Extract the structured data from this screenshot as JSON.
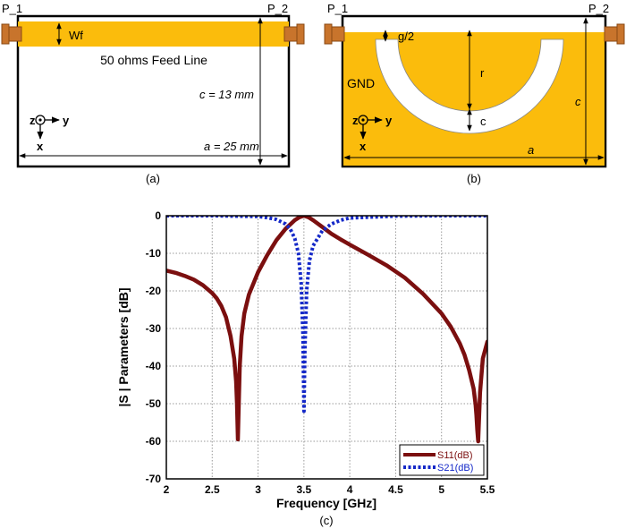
{
  "panel_a": {
    "port1": "P_1",
    "port2": "P_2",
    "feed_width_label": "Wf",
    "feed_line_label": "50 ohms Feed Line",
    "height_label": "c = 13 mm",
    "width_label": "a = 25 mm",
    "axis_z": "z",
    "axis_y": "y",
    "axis_x": "x",
    "caption": "(a)"
  },
  "panel_b": {
    "port1": "P_1",
    "port2": "P_2",
    "gap_label": "g/2",
    "radius_label": "r",
    "ring_width_label": "c",
    "ground_label": "GND",
    "height_label": "c",
    "width_label": "a",
    "axis_z": "z",
    "axis_y": "y",
    "axis_x": "x",
    "caption": "(b)"
  },
  "colors": {
    "metal": "#fbbc0c",
    "connector": "#c8742c",
    "connector_dark": "#8a4a14",
    "s11": "#7b0f0f",
    "s21": "#1428c8"
  },
  "chart_data": {
    "type": "line",
    "xlabel": "Frequency [GHz]",
    "ylabel": "|S | Parameters [dB]",
    "xlim": [
      2,
      5.5
    ],
    "ylim": [
      -70,
      0
    ],
    "xticks": [
      "2",
      "2.5",
      "3",
      "3.5",
      "4",
      "4.5",
      "5",
      "5.5"
    ],
    "yticks": [
      "0",
      "-10",
      "-20",
      "-30",
      "-40",
      "-50",
      "-60",
      "-70"
    ],
    "grid": true,
    "legend_position": "bottom-right",
    "caption": "(c)",
    "series": [
      {
        "name": "S11(dB)",
        "style": "solid",
        "x": [
          2.0,
          2.1,
          2.2,
          2.3,
          2.4,
          2.5,
          2.55,
          2.6,
          2.65,
          2.7,
          2.74,
          2.76,
          2.77,
          2.78,
          2.79,
          2.8,
          2.82,
          2.85,
          2.9,
          3.0,
          3.1,
          3.2,
          3.3,
          3.4,
          3.45,
          3.5,
          3.55,
          3.6,
          3.7,
          3.8,
          3.9,
          4.0,
          4.2,
          4.4,
          4.6,
          4.8,
          5.0,
          5.1,
          5.2,
          5.25,
          5.3,
          5.35,
          5.37,
          5.38,
          5.39,
          5.4,
          5.42,
          5.45,
          5.5
        ],
        "values": [
          -14.6,
          -15.2,
          -16.0,
          -17.0,
          -18.5,
          -20.6,
          -22.0,
          -24.0,
          -27.0,
          -32.0,
          -38.0,
          -44.0,
          -50.0,
          -59.5,
          -50.0,
          -40.0,
          -32.0,
          -26.0,
          -21.0,
          -15.0,
          -10.5,
          -6.5,
          -3.5,
          -1.2,
          -0.4,
          0.0,
          -0.4,
          -1.2,
          -3.0,
          -4.8,
          -6.3,
          -7.7,
          -10.4,
          -13.2,
          -16.5,
          -20.8,
          -26.0,
          -29.5,
          -34.0,
          -37.0,
          -41.0,
          -46.0,
          -50.0,
          -53.0,
          -57.0,
          -60.0,
          -47.0,
          -38.0,
          -33.5
        ]
      },
      {
        "name": "S21(dB)",
        "style": "dotted",
        "x": [
          2.0,
          2.5,
          3.0,
          3.1,
          3.2,
          3.3,
          3.35,
          3.4,
          3.44,
          3.47,
          3.49,
          3.5,
          3.51,
          3.53,
          3.56,
          3.6,
          3.7,
          3.8,
          3.9,
          4.0,
          4.5,
          5.0,
          5.5
        ],
        "values": [
          0.0,
          0.0,
          -0.2,
          -0.5,
          -1.0,
          -2.2,
          -3.5,
          -6.0,
          -10.0,
          -18.0,
          -32.0,
          -52.0,
          -36.0,
          -20.0,
          -12.0,
          -8.0,
          -4.0,
          -2.2,
          -1.2,
          -0.6,
          -0.1,
          0.0,
          0.0
        ]
      }
    ]
  }
}
